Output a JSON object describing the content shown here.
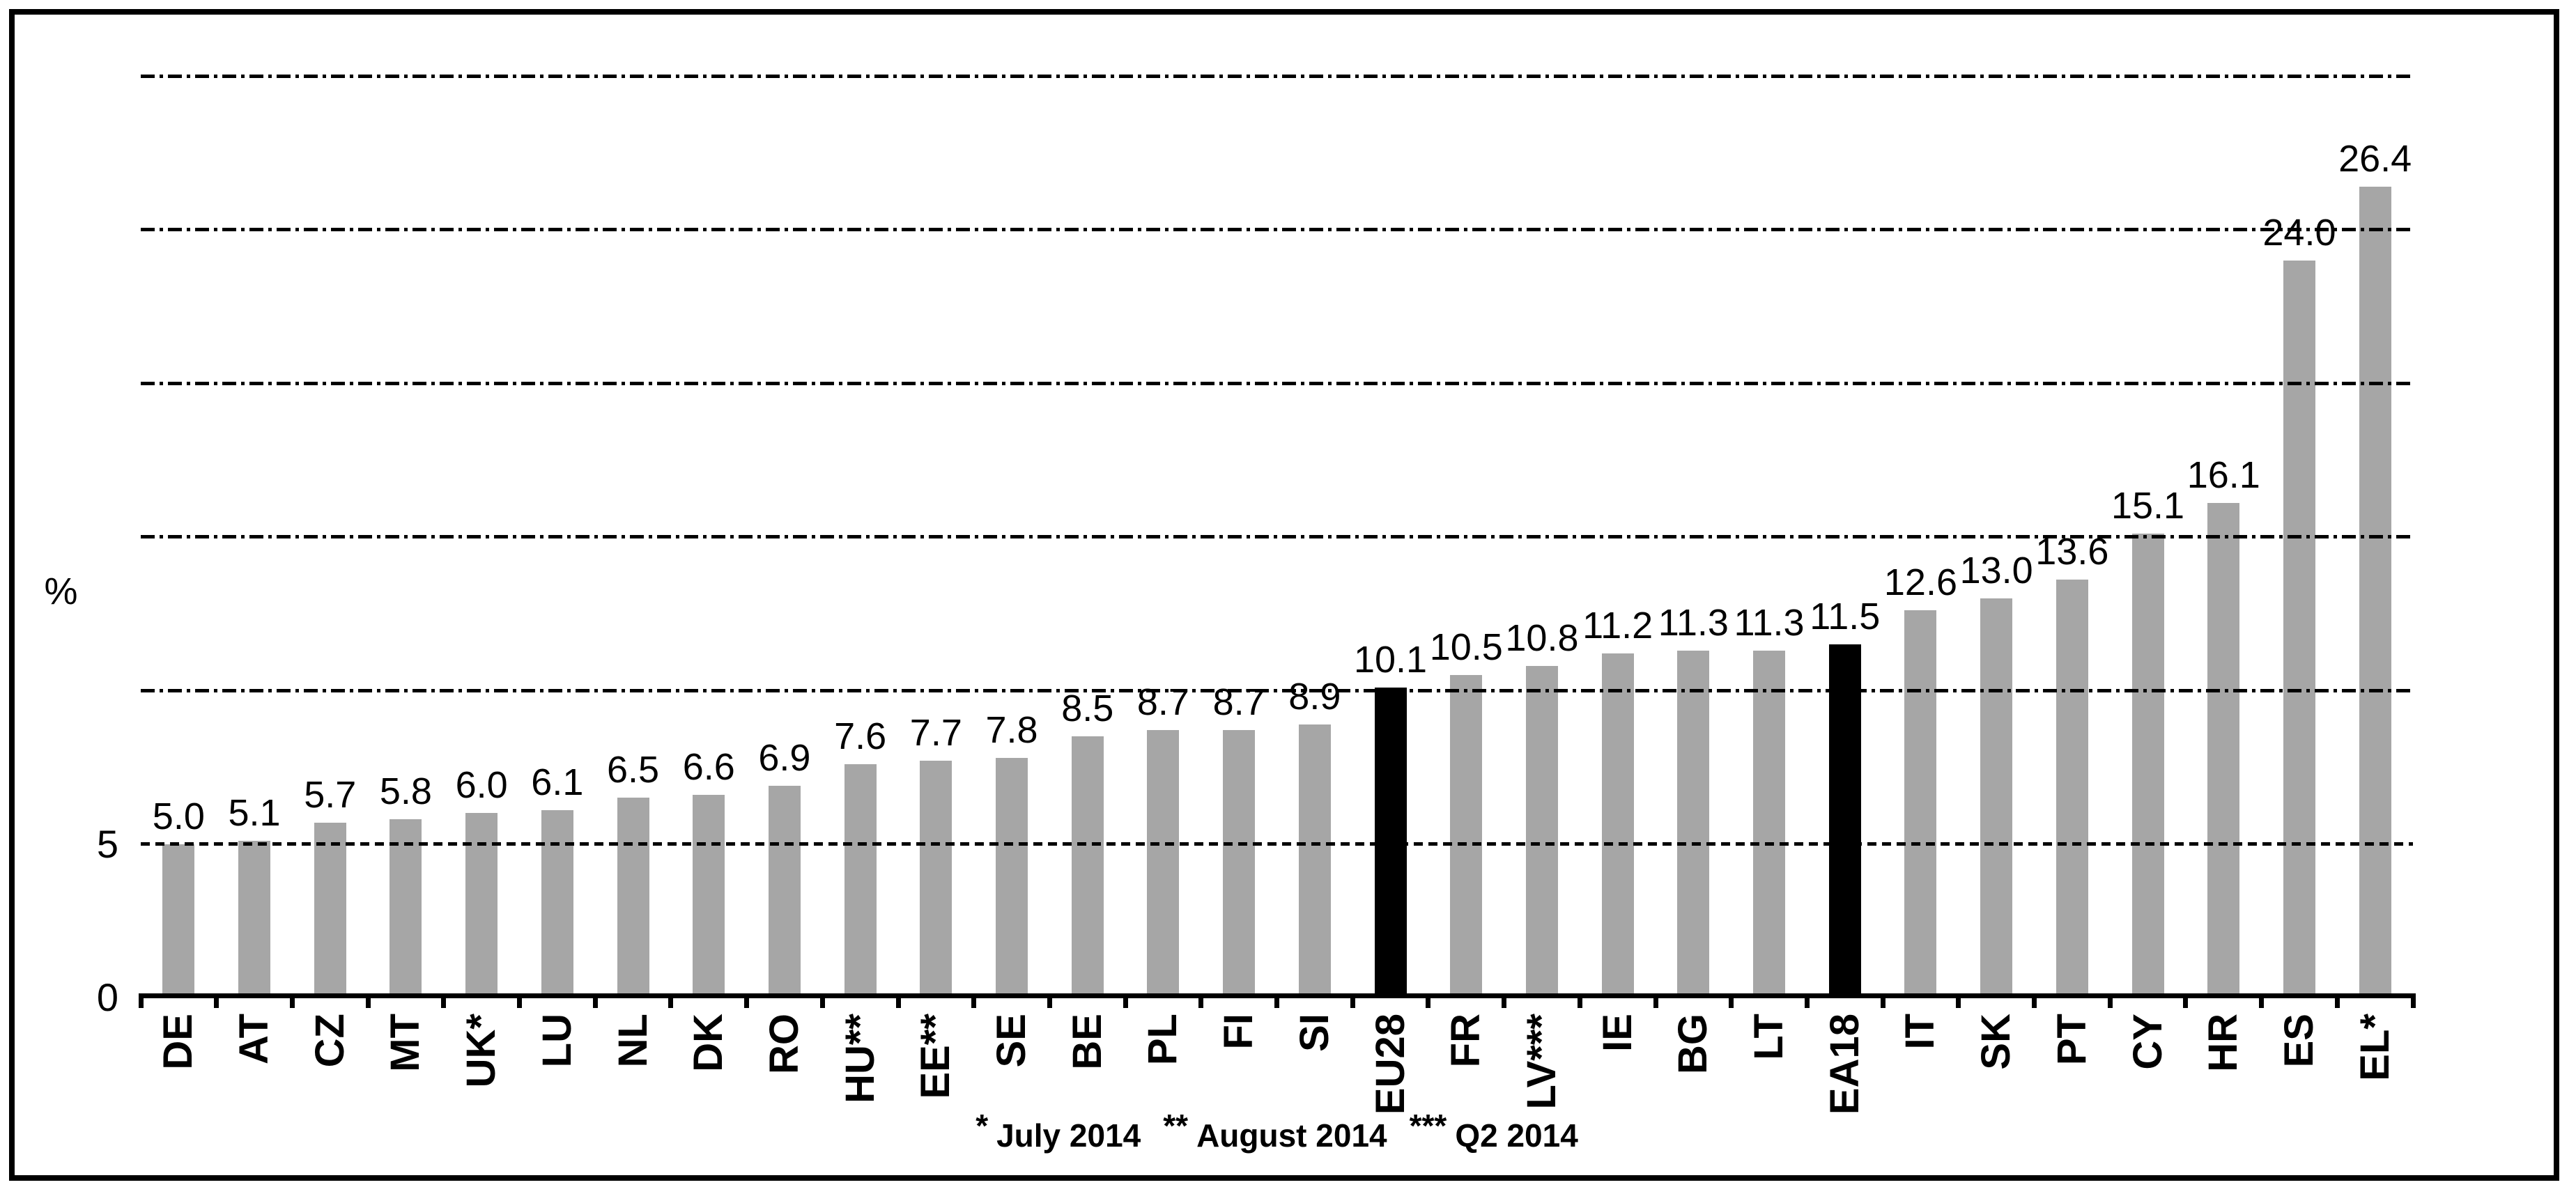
{
  "chart_data": {
    "type": "bar",
    "title": "",
    "ylabel": "%",
    "ylim": [
      0,
      30
    ],
    "gridline_values": [
      5,
      10,
      15,
      20,
      25,
      30
    ],
    "grid_style": "dash-dot",
    "y_axis_labeled_ticks": [
      {
        "value": 5,
        "label": "5"
      },
      {
        "value": 0,
        "label": "0"
      }
    ],
    "categories": [
      "DE",
      "AT",
      "CZ",
      "MT",
      "UK*",
      "LU",
      "NL",
      "DK",
      "RO",
      "HU**",
      "EE**",
      "SE",
      "BE",
      "PL",
      "FI",
      "SI",
      "EU28",
      "FR",
      "LV***",
      "IE",
      "BG",
      "LT",
      "EA18",
      "IT",
      "SK",
      "PT",
      "CY",
      "HR",
      "ES",
      "EL*"
    ],
    "values": [
      5.0,
      5.1,
      5.7,
      5.8,
      6.0,
      6.1,
      6.5,
      6.6,
      6.9,
      7.6,
      7.7,
      7.8,
      8.5,
      8.7,
      8.7,
      8.9,
      10.1,
      10.5,
      10.8,
      11.2,
      11.3,
      11.3,
      11.5,
      12.6,
      13.0,
      13.6,
      15.1,
      16.1,
      24.0,
      26.4
    ],
    "highlighted_categories": [
      "EU28",
      "EA18"
    ],
    "colors": {
      "bar": "#A6A6A6",
      "highlighted_bar": "#000000",
      "grid": "#000000",
      "axis": "#000000",
      "text": "#000000",
      "background": "#FFFFFF"
    },
    "legend": "none",
    "footnotes": [
      {
        "marker": "*",
        "text": "July 2014"
      },
      {
        "marker": "**",
        "text": "August 2014"
      },
      {
        "marker": "***",
        "text": "Q2 2014"
      }
    ]
  }
}
